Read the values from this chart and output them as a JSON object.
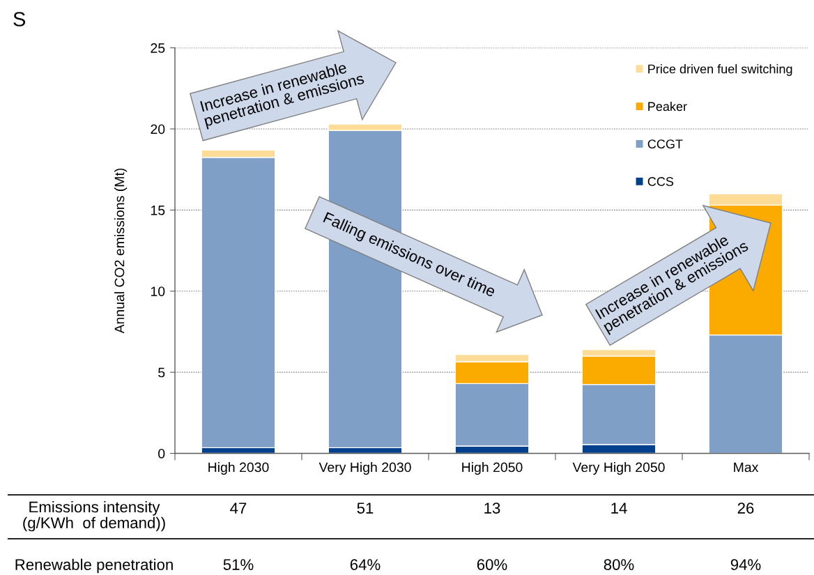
{
  "chart_data": {
    "type": "bar",
    "stacked": true,
    "categories": [
      "High 2030",
      "Very High 2030",
      "High 2050",
      "Very High 2050",
      "Max"
    ],
    "series": [
      {
        "name": "CCS",
        "color": "#02408e",
        "values": [
          0.35,
          0.35,
          0.45,
          0.55,
          0
        ]
      },
      {
        "name": "CCGT",
        "color": "#7f9fc6",
        "values": [
          17.9,
          19.55,
          3.85,
          3.7,
          7.3
        ]
      },
      {
        "name": "Peaker",
        "color": "#fbab00",
        "values": [
          0,
          0,
          1.35,
          1.75,
          8.0
        ]
      },
      {
        "name": "Price driven fuel switching",
        "color": "#fddc98",
        "values": [
          0.45,
          0.4,
          0.45,
          0.4,
          0.7
        ]
      }
    ],
    "ylabel": "Annual CO2 emissions (Mt)",
    "ylim": [
      0,
      25
    ],
    "yticks": [
      0,
      5,
      10,
      15,
      20,
      25
    ],
    "grid": "y",
    "legend": "top right",
    "annotations": [
      "S",
      "Increase in renewable\npenetration & emissions",
      "Falling emissions over time",
      "Increase in renewable\npenetration & emissions",
      "Emissions intensity\n(g/KWh  of demand))",
      "47",
      "51",
      "13",
      "14",
      "26",
      "Renewable penetration",
      "51%",
      "64%",
      "60%",
      "80%",
      "94%"
    ]
  }
}
